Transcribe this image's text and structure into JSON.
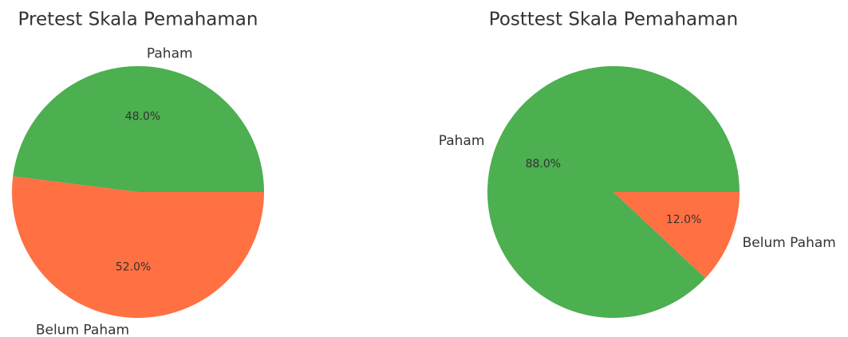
{
  "chart_data": [
    {
      "type": "pie",
      "title": "Pretest Skala Pemahaman",
      "categories": [
        "Paham",
        "Belum Paham"
      ],
      "values": [
        48,
        52
      ],
      "value_labels": [
        "48.0%",
        "52.0%"
      ],
      "colors": [
        "#4caf50",
        "#ff7043"
      ]
    },
    {
      "type": "pie",
      "title": "Posttest Skala Pemahaman",
      "categories": [
        "Paham",
        "Belum Paham"
      ],
      "values": [
        88,
        12
      ],
      "value_labels": [
        "88.0%",
        "12.0%"
      ],
      "colors": [
        "#4caf50",
        "#ff7043"
      ]
    }
  ]
}
